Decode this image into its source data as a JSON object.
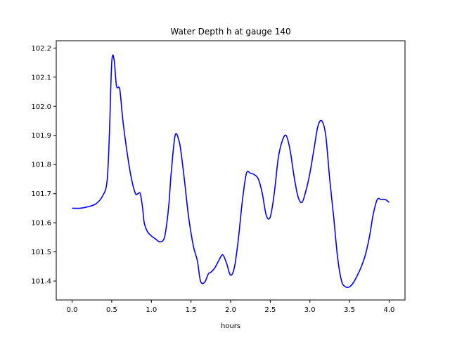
{
  "chart_data": {
    "type": "line",
    "title": "Water Depth h at gauge 140",
    "xlabel": "hours",
    "ylabel": "",
    "xlim": [
      -0.2,
      4.2
    ],
    "ylim": [
      101.335,
      102.225
    ],
    "x_ticks": [
      0.0,
      0.5,
      1.0,
      1.5,
      2.0,
      2.5,
      3.0,
      3.5,
      4.0
    ],
    "x_tick_labels": [
      "0.0",
      "0.5",
      "1.0",
      "1.5",
      "2.0",
      "2.5",
      "3.0",
      "3.5",
      "4.0"
    ],
    "y_ticks": [
      101.4,
      101.5,
      101.6,
      101.7,
      101.8,
      101.9,
      102.0,
      102.1,
      102.2
    ],
    "y_tick_labels": [
      "101.4",
      "101.5",
      "101.6",
      "101.7",
      "101.8",
      "101.9",
      "102.0",
      "102.1",
      "102.2"
    ],
    "grid": false,
    "series": [
      {
        "color": "#0000ff",
        "x": [
          0.0,
          0.1,
          0.2,
          0.3,
          0.38,
          0.44,
          0.47,
          0.5,
          0.53,
          0.56,
          0.6,
          0.63,
          0.65,
          0.7,
          0.75,
          0.8,
          0.83,
          0.86,
          0.89,
          0.91,
          0.95,
          1.0,
          1.05,
          1.1,
          1.15,
          1.18,
          1.22,
          1.25,
          1.3,
          1.35,
          1.38,
          1.42,
          1.47,
          1.53,
          1.58,
          1.62,
          1.67,
          1.72,
          1.75,
          1.8,
          1.85,
          1.9,
          1.95,
          2.0,
          2.05,
          2.1,
          2.15,
          2.2,
          2.25,
          2.3,
          2.35,
          2.4,
          2.45,
          2.5,
          2.55,
          2.6,
          2.65,
          2.7,
          2.75,
          2.8,
          2.85,
          2.9,
          2.95,
          3.0,
          3.05,
          3.1,
          3.15,
          3.2,
          3.25,
          3.3,
          3.35,
          3.4,
          3.45,
          3.5,
          3.55,
          3.6,
          3.65,
          3.7,
          3.75,
          3.8,
          3.85,
          3.9,
          3.95,
          4.0
        ],
        "y": [
          101.65,
          101.65,
          101.655,
          101.665,
          101.69,
          101.74,
          101.9,
          102.15,
          102.16,
          102.07,
          102.06,
          101.98,
          101.93,
          101.83,
          101.75,
          101.7,
          101.7,
          101.7,
          101.65,
          101.6,
          101.57,
          101.555,
          101.545,
          101.535,
          101.54,
          101.57,
          101.66,
          101.77,
          101.9,
          101.88,
          101.83,
          101.74,
          101.62,
          101.52,
          101.47,
          101.4,
          101.395,
          101.425,
          101.43,
          101.445,
          101.47,
          101.49,
          101.46,
          101.42,
          101.45,
          101.55,
          101.68,
          101.77,
          101.77,
          101.765,
          101.75,
          101.7,
          101.625,
          101.62,
          101.7,
          101.82,
          101.88,
          101.9,
          101.85,
          101.76,
          101.69,
          101.67,
          101.71,
          101.77,
          101.85,
          101.93,
          101.95,
          101.9,
          101.75,
          101.62,
          101.48,
          101.4,
          101.38,
          101.38,
          101.395,
          101.42,
          101.45,
          101.49,
          101.55,
          101.63,
          101.68,
          101.68,
          101.68,
          101.67
        ]
      }
    ]
  }
}
